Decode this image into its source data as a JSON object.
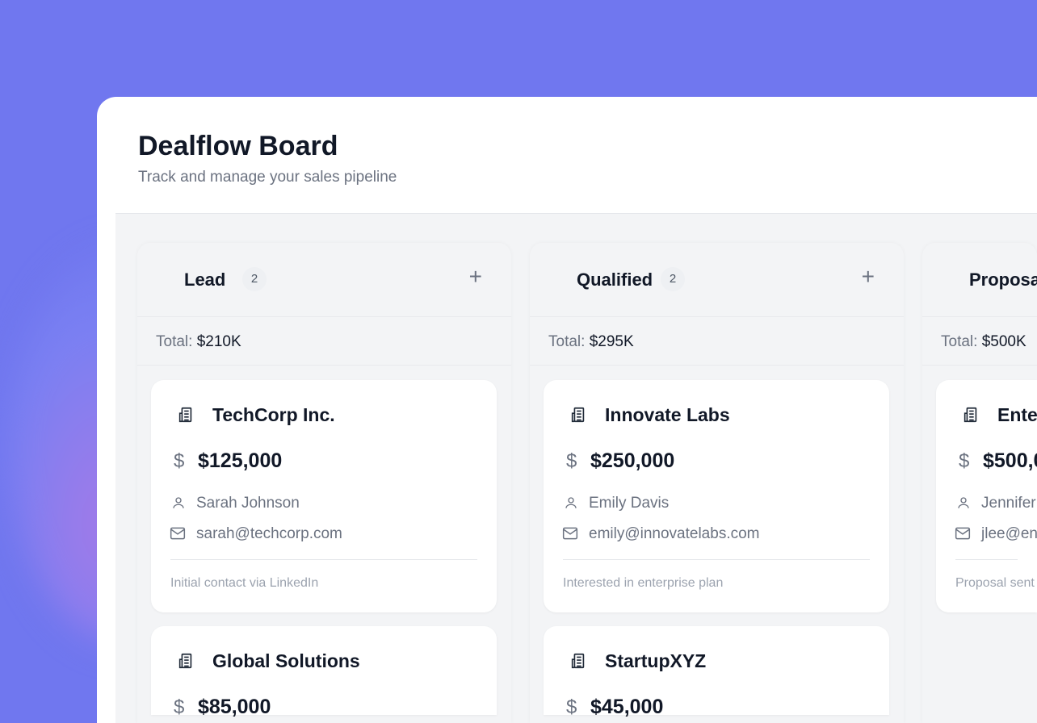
{
  "header": {
    "title": "Dealflow Board",
    "subtitle": "Track and manage your sales pipeline"
  },
  "columns": [
    {
      "name": "Lead",
      "count": "2",
      "total_label": "Total:",
      "total": "$210K",
      "cards": [
        {
          "company": "TechCorp Inc.",
          "amount": "$125,000",
          "contact": "Sarah Johnson",
          "email": "sarah@techcorp.com",
          "note": "Initial contact via LinkedIn"
        },
        {
          "company": "Global Solutions",
          "amount": "$85,000"
        }
      ]
    },
    {
      "name": "Qualified",
      "count": "2",
      "total_label": "Total:",
      "total": "$295K",
      "cards": [
        {
          "company": "Innovate Labs",
          "amount": "$250,000",
          "contact": "Emily Davis",
          "email": "emily@innovatelabs.com",
          "note": "Interested in enterprise plan"
        },
        {
          "company": "StartupXYZ",
          "amount": "$45,000"
        }
      ]
    },
    {
      "name": "Proposa",
      "total_label": "Total:",
      "total": "$500K",
      "cards": [
        {
          "company": "Ente",
          "amount": "$500,0",
          "contact": "Jennifer",
          "email": "jlee@en",
          "note": "Proposal sent"
        }
      ]
    }
  ],
  "icons": {
    "company": "building-icon",
    "amount": "dollar-icon",
    "contact": "user-icon",
    "email": "mail-icon",
    "add": "plus-icon"
  },
  "colors": {
    "background": "#7077ef",
    "board": "#f3f4f6",
    "text": "#111827",
    "muted": "#6b7280"
  }
}
